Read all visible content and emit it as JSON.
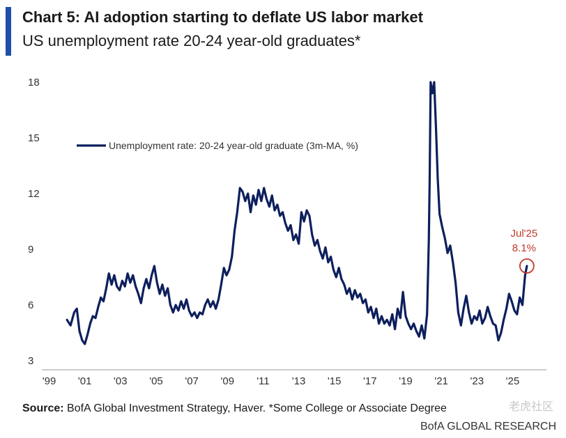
{
  "header": {
    "title": "Chart 5: AI adoption starting to deflate US labor market",
    "subtitle": "US unemployment rate 20-24 year-old graduates*"
  },
  "footer": {
    "source_label": "Source:",
    "source_text": " BofA Global Investment Strategy, Haver. *Some College or Associate Degree",
    "brand": "BofA GLOBAL RESEARCH",
    "watermark": "老虎社区"
  },
  "colors": {
    "accent": "#1f4fa8",
    "line": "#0d1f5c",
    "annotation": "#c0392b"
  },
  "chart_data": {
    "type": "line",
    "xlim": [
      1998.9,
      2026.9
    ],
    "ylim": [
      3,
      18
    ],
    "yticks": [
      3,
      6,
      9,
      12,
      15,
      18
    ],
    "xticks": [
      {
        "value": 1999,
        "label": "'99"
      },
      {
        "value": 2001,
        "label": "'01"
      },
      {
        "value": 2003,
        "label": "'03"
      },
      {
        "value": 2005,
        "label": "'05"
      },
      {
        "value": 2007,
        "label": "'07"
      },
      {
        "value": 2009,
        "label": "'09"
      },
      {
        "value": 2011,
        "label": "'11"
      },
      {
        "value": 2013,
        "label": "'13"
      },
      {
        "value": 2015,
        "label": "'15"
      },
      {
        "value": 2017,
        "label": "'17"
      },
      {
        "value": 2019,
        "label": "'19"
      },
      {
        "value": 2021,
        "label": "'21"
      },
      {
        "value": 2023,
        "label": "'23"
      },
      {
        "value": 2025,
        "label": "'25"
      }
    ],
    "grid": false,
    "legend_position": "top-left",
    "series": [
      {
        "name": "Unemployment rate: 20-24 year-old graduate (3m-MA, %)",
        "points": [
          [
            2000.0,
            5.2
          ],
          [
            2000.2,
            4.9
          ],
          [
            2000.4,
            5.6
          ],
          [
            2000.55,
            5.8
          ],
          [
            2000.7,
            4.6
          ],
          [
            2000.85,
            4.1
          ],
          [
            2001.0,
            3.9
          ],
          [
            2001.15,
            4.4
          ],
          [
            2001.3,
            5.0
          ],
          [
            2001.45,
            5.4
          ],
          [
            2001.6,
            5.3
          ],
          [
            2001.75,
            5.9
          ],
          [
            2001.9,
            6.4
          ],
          [
            2002.05,
            6.2
          ],
          [
            2002.2,
            6.9
          ],
          [
            2002.35,
            7.7
          ],
          [
            2002.5,
            7.1
          ],
          [
            2002.65,
            7.6
          ],
          [
            2002.8,
            7.0
          ],
          [
            2002.95,
            6.8
          ],
          [
            2003.1,
            7.3
          ],
          [
            2003.25,
            7.0
          ],
          [
            2003.4,
            7.7
          ],
          [
            2003.55,
            7.2
          ],
          [
            2003.7,
            7.6
          ],
          [
            2003.85,
            7.0
          ],
          [
            2004.0,
            6.6
          ],
          [
            2004.15,
            6.1
          ],
          [
            2004.3,
            6.9
          ],
          [
            2004.45,
            7.4
          ],
          [
            2004.6,
            6.9
          ],
          [
            2004.75,
            7.6
          ],
          [
            2004.9,
            8.1
          ],
          [
            2005.05,
            7.2
          ],
          [
            2005.2,
            6.6
          ],
          [
            2005.35,
            7.1
          ],
          [
            2005.5,
            6.5
          ],
          [
            2005.65,
            6.9
          ],
          [
            2005.8,
            6.0
          ],
          [
            2005.95,
            5.6
          ],
          [
            2006.1,
            6.0
          ],
          [
            2006.25,
            5.7
          ],
          [
            2006.4,
            6.2
          ],
          [
            2006.55,
            5.8
          ],
          [
            2006.7,
            6.3
          ],
          [
            2006.85,
            5.7
          ],
          [
            2007.0,
            5.4
          ],
          [
            2007.15,
            5.6
          ],
          [
            2007.3,
            5.3
          ],
          [
            2007.45,
            5.6
          ],
          [
            2007.6,
            5.5
          ],
          [
            2007.75,
            6.0
          ],
          [
            2007.9,
            6.3
          ],
          [
            2008.05,
            5.9
          ],
          [
            2008.2,
            6.2
          ],
          [
            2008.35,
            5.8
          ],
          [
            2008.5,
            6.3
          ],
          [
            2008.65,
            7.1
          ],
          [
            2008.8,
            8.0
          ],
          [
            2008.95,
            7.6
          ],
          [
            2009.1,
            7.9
          ],
          [
            2009.25,
            8.6
          ],
          [
            2009.4,
            10.0
          ],
          [
            2009.55,
            11.0
          ],
          [
            2009.7,
            12.3
          ],
          [
            2009.85,
            12.1
          ],
          [
            2010.0,
            11.6
          ],
          [
            2010.15,
            12.0
          ],
          [
            2010.3,
            11.0
          ],
          [
            2010.45,
            11.9
          ],
          [
            2010.6,
            11.4
          ],
          [
            2010.75,
            12.2
          ],
          [
            2010.9,
            11.6
          ],
          [
            2011.05,
            12.3
          ],
          [
            2011.2,
            11.7
          ],
          [
            2011.35,
            11.3
          ],
          [
            2011.5,
            11.9
          ],
          [
            2011.65,
            11.1
          ],
          [
            2011.8,
            11.4
          ],
          [
            2011.95,
            10.8
          ],
          [
            2012.1,
            11.0
          ],
          [
            2012.25,
            10.4
          ],
          [
            2012.4,
            10.0
          ],
          [
            2012.55,
            10.3
          ],
          [
            2012.7,
            9.5
          ],
          [
            2012.85,
            9.8
          ],
          [
            2013.0,
            9.3
          ],
          [
            2013.15,
            11.0
          ],
          [
            2013.3,
            10.5
          ],
          [
            2013.45,
            11.1
          ],
          [
            2013.6,
            10.8
          ],
          [
            2013.75,
            9.8
          ],
          [
            2013.9,
            9.2
          ],
          [
            2014.05,
            9.5
          ],
          [
            2014.2,
            8.9
          ],
          [
            2014.35,
            8.5
          ],
          [
            2014.5,
            9.1
          ],
          [
            2014.65,
            8.3
          ],
          [
            2014.8,
            8.6
          ],
          [
            2014.95,
            7.9
          ],
          [
            2015.1,
            7.5
          ],
          [
            2015.25,
            8.0
          ],
          [
            2015.4,
            7.4
          ],
          [
            2015.55,
            7.1
          ],
          [
            2015.7,
            6.6
          ],
          [
            2015.85,
            6.9
          ],
          [
            2016.0,
            6.3
          ],
          [
            2016.15,
            6.8
          ],
          [
            2016.3,
            6.4
          ],
          [
            2016.45,
            6.6
          ],
          [
            2016.6,
            6.1
          ],
          [
            2016.75,
            6.3
          ],
          [
            2016.9,
            5.6
          ],
          [
            2017.05,
            5.9
          ],
          [
            2017.2,
            5.3
          ],
          [
            2017.35,
            5.8
          ],
          [
            2017.5,
            5.0
          ],
          [
            2017.65,
            5.4
          ],
          [
            2017.8,
            5.0
          ],
          [
            2017.95,
            5.2
          ],
          [
            2018.1,
            4.9
          ],
          [
            2018.25,
            5.5
          ],
          [
            2018.4,
            4.7
          ],
          [
            2018.55,
            5.8
          ],
          [
            2018.7,
            5.3
          ],
          [
            2018.85,
            6.7
          ],
          [
            2019.0,
            5.4
          ],
          [
            2019.15,
            5.0
          ],
          [
            2019.3,
            4.7
          ],
          [
            2019.45,
            5.0
          ],
          [
            2019.6,
            4.6
          ],
          [
            2019.75,
            4.3
          ],
          [
            2019.9,
            4.9
          ],
          [
            2020.05,
            4.2
          ],
          [
            2020.2,
            5.5
          ],
          [
            2020.3,
            9.5
          ],
          [
            2020.35,
            13.0
          ],
          [
            2020.4,
            18.0
          ],
          [
            2020.5,
            17.4
          ],
          [
            2020.6,
            18.0
          ],
          [
            2020.7,
            15.5
          ],
          [
            2020.8,
            12.8
          ],
          [
            2020.9,
            10.9
          ],
          [
            2021.05,
            10.2
          ],
          [
            2021.2,
            9.6
          ],
          [
            2021.35,
            8.8
          ],
          [
            2021.5,
            9.2
          ],
          [
            2021.65,
            8.3
          ],
          [
            2021.8,
            7.2
          ],
          [
            2021.95,
            5.6
          ],
          [
            2022.1,
            4.9
          ],
          [
            2022.25,
            5.8
          ],
          [
            2022.4,
            6.5
          ],
          [
            2022.55,
            5.6
          ],
          [
            2022.7,
            5.0
          ],
          [
            2022.85,
            5.4
          ],
          [
            2023.0,
            5.2
          ],
          [
            2023.15,
            5.7
          ],
          [
            2023.3,
            5.0
          ],
          [
            2023.45,
            5.3
          ],
          [
            2023.6,
            5.9
          ],
          [
            2023.75,
            5.4
          ],
          [
            2023.9,
            5.0
          ],
          [
            2024.05,
            4.9
          ],
          [
            2024.2,
            4.1
          ],
          [
            2024.35,
            4.5
          ],
          [
            2024.5,
            5.2
          ],
          [
            2024.65,
            5.8
          ],
          [
            2024.8,
            6.6
          ],
          [
            2024.95,
            6.2
          ],
          [
            2025.1,
            5.7
          ],
          [
            2025.25,
            5.5
          ],
          [
            2025.4,
            6.4
          ],
          [
            2025.55,
            6.0
          ],
          [
            2025.7,
            7.6
          ],
          [
            2025.8,
            8.1
          ]
        ]
      }
    ],
    "annotation": {
      "x": 2025.8,
      "y": 8.1,
      "label_line1": "Jul'25",
      "label_line2": "8.1%"
    }
  }
}
